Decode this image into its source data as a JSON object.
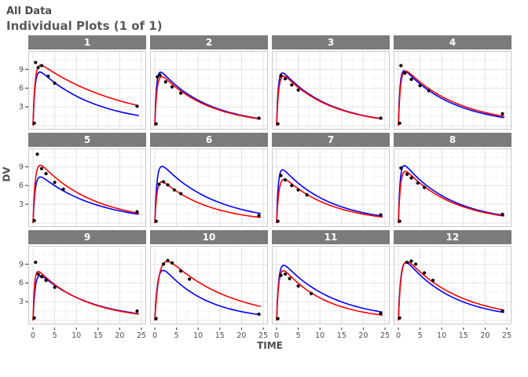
{
  "header": {
    "title": "All Data",
    "subtitle": "Individual Plots (1 of 1)"
  },
  "axes": {
    "x_label": "TIME",
    "y_label": "DV",
    "x_ticks": [
      0,
      5,
      10,
      15,
      20,
      25
    ],
    "y_ticks": [
      9,
      6,
      3
    ],
    "x_major_grid": [
      0,
      5,
      10,
      15,
      20,
      25
    ],
    "x_minor_grid": [
      2.5,
      7.5,
      12.5,
      17.5,
      22.5
    ],
    "y_major_grid": [
      0,
      3,
      6,
      9
    ],
    "y_minor_grid": [
      1.5,
      4.5,
      7.5,
      10.5
    ]
  },
  "colors": {
    "ipred": "#FF0000",
    "pred": "#0000FF",
    "obs": "#000000",
    "strip_bg": "#7B7B7B",
    "strip_text": "#FFFFFF",
    "grid_major": "#E2E2E2",
    "grid_minor": "#F1F1F1",
    "panel_border": "#C9C9C9",
    "axis_text": "#4D4D4D",
    "title_text": "#4A4A4A"
  },
  "chart_data": {
    "type": "line",
    "title": "Individual Plots (1 of 1)",
    "xlabel": "TIME",
    "ylabel": "DV",
    "x_range": [
      0,
      25
    ],
    "y_range": [
      0,
      11.3
    ],
    "legend": "none",
    "grid": "on",
    "series_meaning": {
      "ipred": "individual prediction (red line)",
      "pred": "population prediction (blue line)",
      "obs": "observed DV (black points)"
    },
    "facets": [
      {
        "label": "1",
        "obs": [
          [
            0.3,
            0.4
          ],
          [
            0.6,
            10.1
          ],
          [
            1.2,
            9.3
          ],
          [
            2,
            9.6
          ],
          [
            3.5,
            7.9
          ],
          [
            5,
            6.8
          ],
          [
            24,
            3.1
          ]
        ],
        "series": [
          {
            "name": "ipred",
            "A": 10.8,
            "ka": 2.2,
            "ke": 0.05
          },
          {
            "name": "pred",
            "A": 10.0,
            "ka": 2.2,
            "ke": 0.075
          }
        ]
      },
      {
        "label": "2",
        "obs": [
          [
            0.3,
            0.3
          ],
          [
            0.6,
            7.8
          ],
          [
            1.2,
            8.1
          ],
          [
            2.5,
            7.0
          ],
          [
            4,
            6.2
          ],
          [
            6,
            5.2
          ],
          [
            24,
            1.2
          ]
        ],
        "series": [
          {
            "name": "ipred",
            "A": 9.5,
            "ka": 2.0,
            "ke": 0.09
          },
          {
            "name": "pred",
            "A": 10.0,
            "ka": 2.6,
            "ke": 0.09
          }
        ]
      },
      {
        "label": "3",
        "obs": [
          [
            0.3,
            0.3
          ],
          [
            1,
            8.0
          ],
          [
            2,
            7.5
          ],
          [
            3.5,
            6.5
          ],
          [
            5,
            5.7
          ],
          [
            24,
            1.2
          ]
        ],
        "series": [
          {
            "name": "ipred",
            "A": 9.6,
            "ka": 2.0,
            "ke": 0.09
          },
          {
            "name": "pred",
            "A": 9.9,
            "ka": 2.5,
            "ke": 0.09
          }
        ]
      },
      {
        "label": "4",
        "obs": [
          [
            0.3,
            0.4
          ],
          [
            0.6,
            9.6
          ],
          [
            1.5,
            8.4
          ],
          [
            3,
            7.4
          ],
          [
            5,
            6.4
          ],
          [
            7,
            5.6
          ],
          [
            24,
            1.9
          ]
        ],
        "series": [
          {
            "name": "ipred",
            "A": 10.4,
            "ka": 2.0,
            "ke": 0.08
          },
          {
            "name": "pred",
            "A": 10.2,
            "ka": 2.6,
            "ke": 0.085
          }
        ]
      },
      {
        "label": "5",
        "obs": [
          [
            0.3,
            0.4
          ],
          [
            1,
            11.0
          ],
          [
            2,
            8.7
          ],
          [
            3,
            7.9
          ],
          [
            5,
            6.5
          ],
          [
            7,
            5.4
          ],
          [
            24,
            1.8
          ]
        ],
        "series": [
          {
            "name": "ipred",
            "A": 11.0,
            "ka": 2.0,
            "ke": 0.08
          },
          {
            "name": "pred",
            "A": 8.7,
            "ka": 2.0,
            "ke": 0.075
          }
        ]
      },
      {
        "label": "6",
        "obs": [
          [
            0.3,
            0.3
          ],
          [
            1,
            6.2
          ],
          [
            2,
            6.6
          ],
          [
            3,
            6.1
          ],
          [
            4.5,
            5.3
          ],
          [
            6,
            4.7
          ],
          [
            24,
            1.2
          ]
        ],
        "series": [
          {
            "name": "ipred",
            "A": 8.0,
            "ka": 2.0,
            "ke": 0.09
          },
          {
            "name": "pred",
            "A": 10.8,
            "ka": 2.0,
            "ke": 0.08
          }
        ]
      },
      {
        "label": "7",
        "obs": [
          [
            0.3,
            0.3
          ],
          [
            1,
            7.6
          ],
          [
            2,
            6.9
          ],
          [
            3.5,
            6.0
          ],
          [
            5,
            5.3
          ],
          [
            7,
            4.5
          ],
          [
            24,
            1.3
          ]
        ],
        "series": [
          {
            "name": "ipred",
            "A": 8.6,
            "ka": 1.8,
            "ke": 0.09
          },
          {
            "name": "pred",
            "A": 10.0,
            "ka": 2.5,
            "ke": 0.09
          }
        ]
      },
      {
        "label": "8",
        "obs": [
          [
            0.3,
            0.3
          ],
          [
            0.6,
            8.8
          ],
          [
            2,
            7.8
          ],
          [
            3,
            7.2
          ],
          [
            4.5,
            6.4
          ],
          [
            6,
            5.7
          ],
          [
            24,
            1.4
          ]
        ],
        "series": [
          {
            "name": "ipred",
            "A": 10.0,
            "ka": 2.0,
            "ke": 0.09
          },
          {
            "name": "pred",
            "A": 10.8,
            "ka": 2.5,
            "ke": 0.09
          }
        ]
      },
      {
        "label": "9",
        "obs": [
          [
            0.3,
            0.4
          ],
          [
            0.6,
            9.3
          ],
          [
            1.2,
            7.4
          ],
          [
            2,
            7.0
          ],
          [
            3,
            6.4
          ],
          [
            5,
            5.3
          ],
          [
            24,
            1.5
          ]
        ],
        "series": [
          {
            "name": "ipred",
            "A": 9.0,
            "ka": 3.0,
            "ke": 0.09
          },
          {
            "name": "pred",
            "A": 8.6,
            "ka": 2.0,
            "ke": 0.085
          }
        ]
      },
      {
        "label": "10",
        "obs": [
          [
            0.3,
            0.3
          ],
          [
            2,
            9.0
          ],
          [
            3,
            9.6
          ],
          [
            4,
            9.2
          ],
          [
            6,
            7.9
          ],
          [
            8,
            6.6
          ],
          [
            24,
            1.0
          ]
        ],
        "series": [
          {
            "name": "ipred",
            "A": 12.4,
            "ka": 1.0,
            "ke": 0.07
          },
          {
            "name": "pred",
            "A": 10.4,
            "ka": 1.5,
            "ke": 0.1
          }
        ]
      },
      {
        "label": "11",
        "obs": [
          [
            0.3,
            0.3
          ],
          [
            1,
            7.2
          ],
          [
            2,
            7.4
          ],
          [
            3,
            6.7
          ],
          [
            5,
            5.5
          ],
          [
            8,
            4.3
          ],
          [
            24,
            1.1
          ]
        ],
        "series": [
          {
            "name": "ipred",
            "A": 9.8,
            "ka": 2.0,
            "ke": 0.1
          },
          {
            "name": "pred",
            "A": 10.6,
            "ka": 2.0,
            "ke": 0.085
          }
        ]
      },
      {
        "label": "12",
        "obs": [
          [
            0.3,
            0.4
          ],
          [
            2,
            9.3
          ],
          [
            3,
            9.5
          ],
          [
            4,
            9.0
          ],
          [
            6,
            7.6
          ],
          [
            8,
            6.4
          ],
          [
            24,
            1.5
          ]
        ],
        "series": [
          {
            "name": "ipred",
            "A": 11.6,
            "ka": 1.6,
            "ke": 0.08
          },
          {
            "name": "pred",
            "A": 11.4,
            "ka": 1.8,
            "ke": 0.09
          }
        ]
      }
    ]
  }
}
